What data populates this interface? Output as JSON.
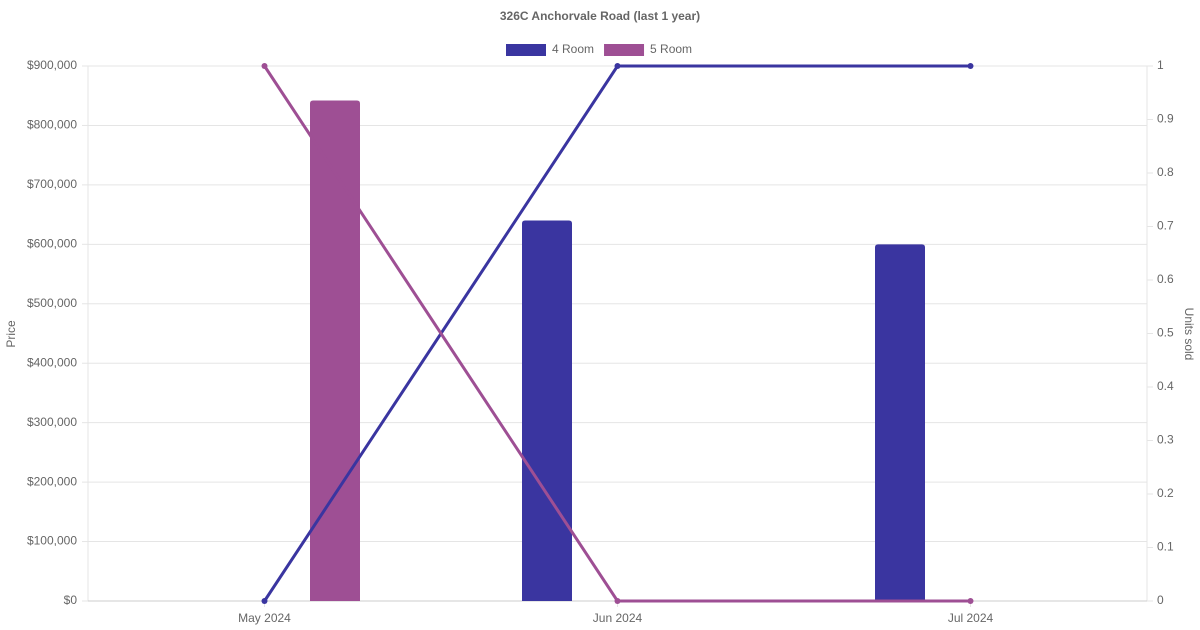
{
  "chart_data": {
    "type": "bar-line",
    "title": "326C Anchorvale Road (last 1 year)",
    "y_label": "Price",
    "y2_label": "Units sold",
    "categories": [
      "May 2024",
      "Jun 2024",
      "Jul 2024"
    ],
    "series": [
      {
        "name": "4 Room",
        "color": "#3a35a0",
        "values": [
          null,
          640000,
          600000
        ],
        "units_sold": [
          0,
          1,
          1
        ]
      },
      {
        "name": "5 Room",
        "color": "#9e4f94",
        "values": [
          842000,
          null,
          null
        ],
        "units_sold": [
          1,
          0,
          0
        ]
      }
    ],
    "ylim": [
      0,
      900000
    ],
    "yticks": [
      {
        "value": 0,
        "label": "$0"
      },
      {
        "value": 100000,
        "label": "$100,000"
      },
      {
        "value": 200000,
        "label": "$200,000"
      },
      {
        "value": 300000,
        "label": "$300,000"
      },
      {
        "value": 400000,
        "label": "$400,000"
      },
      {
        "value": 500000,
        "label": "$500,000"
      },
      {
        "value": 600000,
        "label": "$600,000"
      },
      {
        "value": 700000,
        "label": "$700,000"
      },
      {
        "value": 800000,
        "label": "$800,000"
      },
      {
        "value": 900000,
        "label": "$900,000"
      }
    ],
    "y2lim": [
      0,
      1
    ],
    "y2ticks": [
      0,
      0.1,
      0.2,
      0.3,
      0.4,
      0.5,
      0.6,
      0.7,
      0.8,
      0.9,
      1
    ],
    "grid": true
  }
}
